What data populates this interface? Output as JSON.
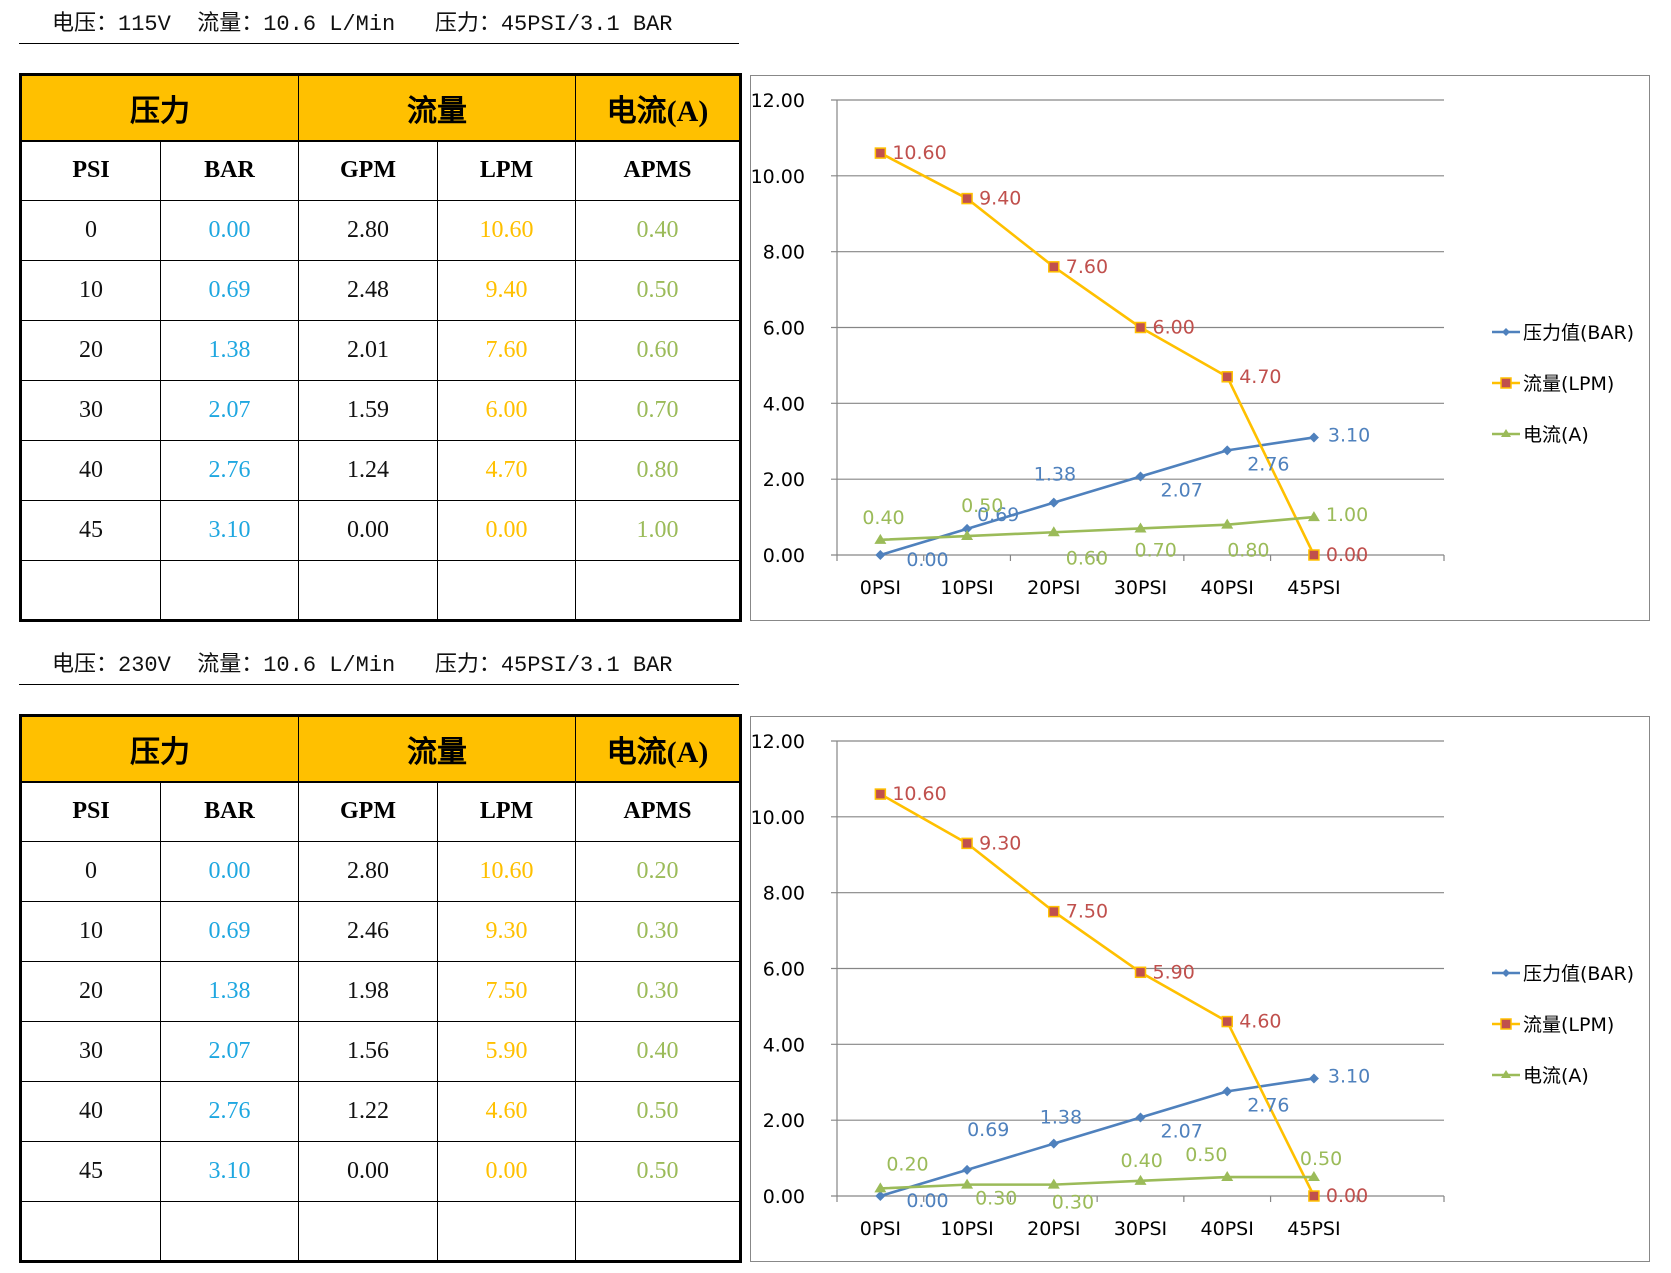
{
  "colors": {
    "header_bg": "#ffc000",
    "bar_text": "#1fa7e0",
    "lpm_text": "#ffc000",
    "apms_text": "#9bbb59",
    "series_pressure": "#4f81bd",
    "series_flow_line": "#ffc000",
    "series_flow_marker": "#c0504d",
    "series_current": "#9bbb59"
  },
  "sections": [
    {
      "spec_line": "电压：115V  流量：10.6 L/Min   压力：45PSI/3.1 BAR",
      "table": {
        "group_headers": [
          "压力",
          "流量",
          "电流(A)"
        ],
        "column_headers": [
          "PSI",
          "BAR",
          "GPM",
          "LPM",
          "APMS"
        ],
        "rows": [
          [
            "0",
            "0.00",
            "2.80",
            "10.60",
            "0.40"
          ],
          [
            "10",
            "0.69",
            "2.48",
            "9.40",
            "0.50"
          ],
          [
            "20",
            "1.38",
            "2.01",
            "7.60",
            "0.60"
          ],
          [
            "30",
            "2.07",
            "1.59",
            "6.00",
            "0.70"
          ],
          [
            "40",
            "2.76",
            "1.24",
            "4.70",
            "0.80"
          ],
          [
            "45",
            "3.10",
            "0.00",
            "0.00",
            "1.00"
          ],
          [
            "",
            "",
            "",
            "",
            ""
          ]
        ]
      }
    },
    {
      "spec_line": "电压：230V  流量：10.6 L/Min   压力：45PSI/3.1 BAR",
      "table": {
        "group_headers": [
          "压力",
          "流量",
          "电流(A)"
        ],
        "column_headers": [
          "PSI",
          "BAR",
          "GPM",
          "LPM",
          "APMS"
        ],
        "rows": [
          [
            "0",
            "0.00",
            "2.80",
            "10.60",
            "0.20"
          ],
          [
            "10",
            "0.69",
            "2.46",
            "9.30",
            "0.30"
          ],
          [
            "20",
            "1.38",
            "1.98",
            "7.50",
            "0.30"
          ],
          [
            "30",
            "2.07",
            "1.56",
            "5.90",
            "0.40"
          ],
          [
            "40",
            "2.76",
            "1.22",
            "4.60",
            "0.50"
          ],
          [
            "45",
            "3.10",
            "0.00",
            "0.00",
            "0.50"
          ],
          [
            "",
            "",
            "",
            "",
            ""
          ]
        ]
      }
    }
  ],
  "chart_data": [
    {
      "type": "line",
      "title": "",
      "xlabel": "",
      "ylabel": "",
      "categories": [
        "0PSI",
        "10PSI",
        "20PSI",
        "30PSI",
        "40PSI",
        "45PSI"
      ],
      "ylim": [
        0,
        12
      ],
      "yticks": [
        "0.00",
        "2.00",
        "4.00",
        "6.00",
        "8.00",
        "10.00",
        "12.00"
      ],
      "grid": true,
      "legend_position": "right",
      "series": [
        {
          "name": "压力值(BAR)",
          "marker": "diamond",
          "values": [
            0.0,
            0.69,
            1.38,
            2.07,
            2.76,
            3.1
          ],
          "labels": [
            "0.00",
            "0.69",
            "1.38",
            "2.07",
            "2.76",
            "3.10"
          ]
        },
        {
          "name": "流量(LPM)",
          "marker": "square",
          "values": [
            10.6,
            9.4,
            7.6,
            6.0,
            4.7,
            0.0
          ],
          "labels": [
            "10.60",
            "9.40",
            "7.60",
            "6.00",
            "4.70",
            "0.00"
          ]
        },
        {
          "name": "电流(A)",
          "marker": "triangle",
          "values": [
            0.4,
            0.5,
            0.6,
            0.7,
            0.8,
            1.0
          ],
          "labels": [
            "0.40",
            "0.50",
            "0.60",
            "0.70",
            "0.80",
            "1.00"
          ]
        }
      ]
    },
    {
      "type": "line",
      "title": "",
      "xlabel": "",
      "ylabel": "",
      "categories": [
        "0PSI",
        "10PSI",
        "20PSI",
        "30PSI",
        "40PSI",
        "45PSI"
      ],
      "ylim": [
        0,
        12
      ],
      "yticks": [
        "0.00",
        "2.00",
        "4.00",
        "6.00",
        "8.00",
        "10.00",
        "12.00"
      ],
      "grid": true,
      "legend_position": "right",
      "series": [
        {
          "name": "压力值(BAR)",
          "marker": "diamond",
          "values": [
            0.0,
            0.69,
            1.38,
            2.07,
            2.76,
            3.1
          ],
          "labels": [
            "0.00",
            "0.69",
            "1.38",
            "2.07",
            "2.76",
            "3.10"
          ]
        },
        {
          "name": "流量(LPM)",
          "marker": "square",
          "values": [
            10.6,
            9.3,
            7.5,
            5.9,
            4.6,
            0.0
          ],
          "labels": [
            "10.60",
            "9.30",
            "7.50",
            "5.90",
            "4.60",
            "0.00"
          ]
        },
        {
          "name": "电流(A)",
          "marker": "triangle",
          "values": [
            0.2,
            0.3,
            0.3,
            0.4,
            0.5,
            0.5
          ],
          "labels": [
            "0.20",
            "0.30",
            "0.30",
            "0.40",
            "0.50",
            "0.50"
          ]
        }
      ]
    }
  ]
}
